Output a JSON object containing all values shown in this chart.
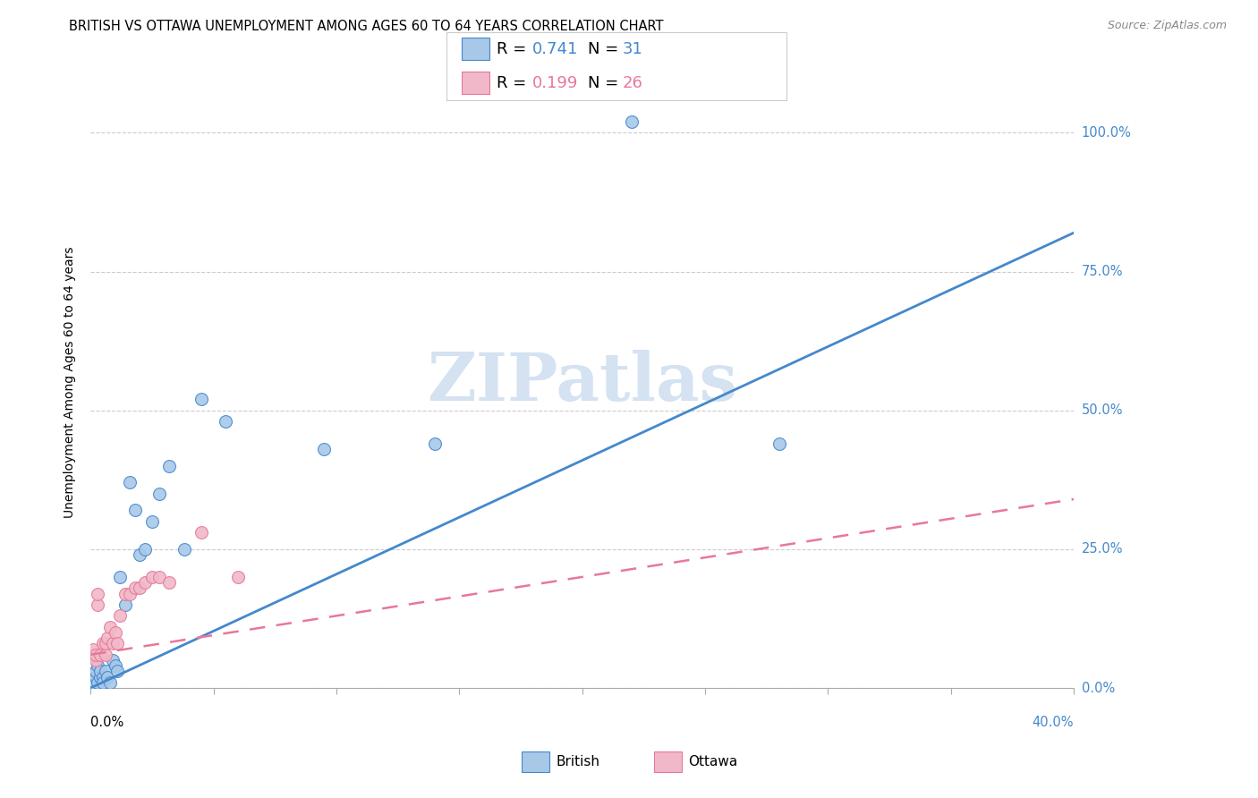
{
  "title": "BRITISH VS OTTAWA UNEMPLOYMENT AMONG AGES 60 TO 64 YEARS CORRELATION CHART",
  "source": "Source: ZipAtlas.com",
  "ylabel": "Unemployment Among Ages 60 to 64 years",
  "ytick_labels": [
    "0.0%",
    "25.0%",
    "50.0%",
    "75.0%",
    "100.0%"
  ],
  "ytick_values": [
    0,
    0.25,
    0.5,
    0.75,
    1.0
  ],
  "xlim": [
    0,
    0.4
  ],
  "ylim": [
    0,
    1.1
  ],
  "watermark": "ZIPatlas",
  "watermark_color": "#b8d0e8",
  "british_color": "#a8c8e8",
  "ottawa_color": "#f0b8c8",
  "british_line_color": "#4488cc",
  "ottawa_line_color": "#e87898",
  "british_scatter_x": [
    0.001,
    0.002,
    0.002,
    0.003,
    0.003,
    0.004,
    0.004,
    0.005,
    0.005,
    0.006,
    0.007,
    0.008,
    0.009,
    0.01,
    0.011,
    0.012,
    0.014,
    0.016,
    0.018,
    0.02,
    0.022,
    0.025,
    0.028,
    0.032,
    0.038,
    0.045,
    0.055,
    0.095,
    0.14,
    0.22,
    0.28
  ],
  "british_scatter_y": [
    0.01,
    0.02,
    0.03,
    0.01,
    0.04,
    0.02,
    0.03,
    0.02,
    0.01,
    0.03,
    0.02,
    0.01,
    0.05,
    0.04,
    0.03,
    0.2,
    0.15,
    0.37,
    0.32,
    0.24,
    0.25,
    0.3,
    0.35,
    0.4,
    0.25,
    0.52,
    0.48,
    0.43,
    0.44,
    1.02,
    0.44
  ],
  "ottawa_scatter_x": [
    0.001,
    0.001,
    0.002,
    0.002,
    0.003,
    0.003,
    0.004,
    0.005,
    0.006,
    0.006,
    0.007,
    0.008,
    0.009,
    0.01,
    0.011,
    0.012,
    0.014,
    0.016,
    0.018,
    0.02,
    0.022,
    0.025,
    0.028,
    0.032,
    0.045,
    0.06
  ],
  "ottawa_scatter_y": [
    0.06,
    0.07,
    0.05,
    0.06,
    0.15,
    0.17,
    0.06,
    0.08,
    0.06,
    0.08,
    0.09,
    0.11,
    0.08,
    0.1,
    0.08,
    0.13,
    0.17,
    0.17,
    0.18,
    0.18,
    0.19,
    0.2,
    0.2,
    0.19,
    0.28,
    0.2
  ],
  "british_trend_x": [
    0.0,
    0.4
  ],
  "british_trend_y": [
    0.0,
    0.82
  ],
  "ottawa_trend_x": [
    0.0,
    0.4
  ],
  "ottawa_trend_y": [
    0.06,
    0.34
  ],
  "grid_color": "#cccccc",
  "background_color": "#ffffff",
  "title_fontsize": 10.5,
  "source_fontsize": 9,
  "legend_fontsize": 13,
  "axis_tick_color": "#4488cc"
}
